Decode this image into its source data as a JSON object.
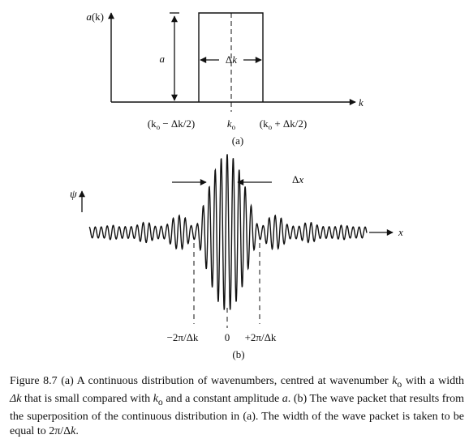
{
  "figure": {
    "panel_a": {
      "ylabel_main": "a",
      "ylabel_arg": "(k)",
      "xlabel": "k",
      "amp_label": "a",
      "width_label": "Δk",
      "tick_left": {
        "open": "(k",
        "sub": "o",
        "rest": " − Δk/2)"
      },
      "tick_mid": {
        "main": "k",
        "sub": "o"
      },
      "tick_right": {
        "open": "(k",
        "sub": "o",
        "rest": " + Δk/2)"
      },
      "tag": "(a)"
    },
    "panel_b": {
      "ylabel": "ψ",
      "xlabel": "x",
      "width_label": "Δx",
      "tick_left": "−2π/Δk",
      "tick_zero": "0",
      "tick_right": "+2π/Δk",
      "tag": "(b)"
    }
  },
  "caption": {
    "t1": "Figure 8.7   (a) A continuous distribution of wavenumbers, centred at wavenumber ",
    "t2": "k",
    "t3": "o",
    "t4": " with a width ",
    "t5": "Δk",
    "t6": " that is small compared with ",
    "t7": "k",
    "t8": "o",
    "t9": " and a constant amplitude ",
    "t10": "a",
    "t11": ". (b) The wave packet that results from the superposition of the continuous distribution in (a). The width of the wave packet is taken to be equal to 2π/Δ",
    "t12": "k",
    "t13": "."
  }
}
